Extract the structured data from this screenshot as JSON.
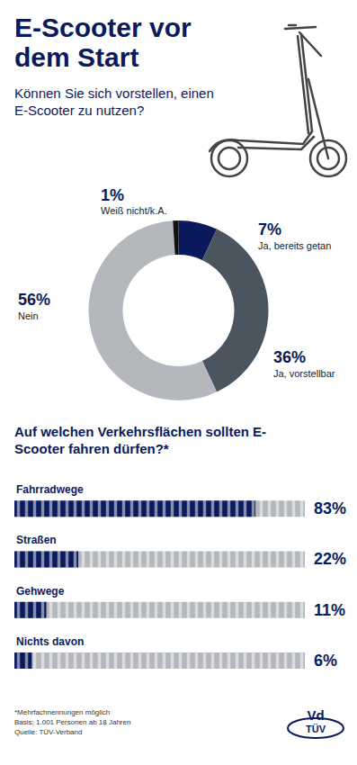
{
  "title": "E-Scooter vor dem Start",
  "chart_data": [
    {
      "type": "pie",
      "title": "Können Sie sich vorstellen, einen E-Scooter zu nutzen?",
      "categories": [
        "Ja, bereits getan",
        "Ja, vorstellbar",
        "Nein",
        "Weiß nicht/k.A."
      ],
      "values": [
        7,
        36,
        56,
        1
      ],
      "value_labels": [
        "7%",
        "36%",
        "56%",
        "1%"
      ],
      "colors": [
        "#0b1a5c",
        "#4b5560",
        "#b4b8bd",
        "#111111"
      ],
      "data_labels": true
    },
    {
      "type": "bar",
      "orientation": "horizontal",
      "title": "Auf welchen Verkehrsflächen sollten E-Scooter fahren dürfen?*",
      "categories": [
        "Fahrradwege",
        "Straßen",
        "Gehwege",
        "Nichts davon"
      ],
      "values": [
        83,
        22,
        11,
        6
      ],
      "value_labels": [
        "83%",
        "22%",
        "11%",
        "6%"
      ],
      "color": "#0b1a5c",
      "xlim": [
        0,
        100
      ],
      "data_labels": true
    }
  ],
  "footnotes": [
    "*Mehrfachnennungen möglich",
    "Basis: 1.001 Personen ab 18 Jahren",
    "Quelle: TÜV-Verband"
  ],
  "logo": [
    "Vd",
    "TÜV"
  ]
}
